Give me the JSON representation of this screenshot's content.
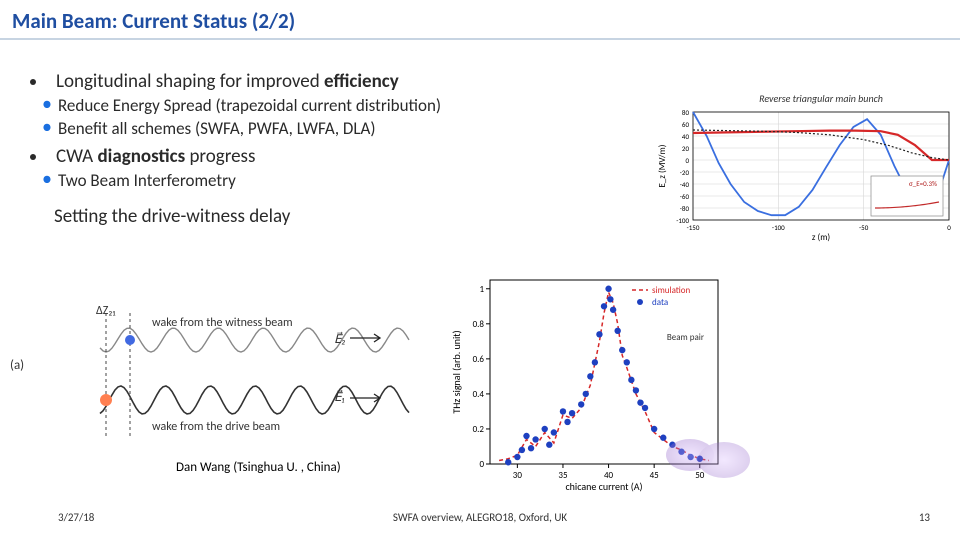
{
  "title": "Main Beam: Current Status (2/2)",
  "bullets": {
    "b1": "Longitudinal shaping for improved ",
    "b1_bold": "efficiency",
    "b1a": "Reduce Energy Spread (trapezoidal current distribution)",
    "b1b": "Benefit all schemes (SWFA, PWFA, LWFA, DLA)",
    "b2_pre": "CWA ",
    "b2_bold": "diagnostics",
    "b2_post": " progress",
    "b2a": "Two Beam Interferometry"
  },
  "sub_heading": "Setting the drive-witness delay",
  "diagram_a": {
    "label_a": "(a)",
    "delta": "ΔZ₂₁",
    "witness": "wake from the witness beam",
    "drive": "wake from the drive beam",
    "e1": "E⃗₁",
    "e2": "E⃗₂",
    "wave_color_dark": "#333333",
    "wave_color_light": "#888888",
    "witness_marker": "#4169e1",
    "drive_marker": "#ff7f50"
  },
  "thz": {
    "type": "scatter+line",
    "xlabel": "chicane current (A)",
    "ylabel": "THz signal (arb. unit)",
    "legend_sim": "simulation",
    "legend_data": "data",
    "beam_pair": "Beam pair",
    "xlim": [
      27,
      52
    ],
    "xticks": [
      30,
      35,
      40,
      45,
      50
    ],
    "ylim": [
      0,
      1.05
    ],
    "yticks": [
      0,
      0.2,
      0.4,
      0.6,
      0.8,
      1
    ],
    "sim_color": "#d62728",
    "sim_dash": "4,3",
    "data_color": "#1e40c0",
    "marker_size": 3.2,
    "grid_color": "#000000",
    "background": "#ffffff",
    "sim_points": [
      [
        28,
        0.02
      ],
      [
        29,
        0.03
      ],
      [
        30,
        0.05
      ],
      [
        31,
        0.14
      ],
      [
        32,
        0.1
      ],
      [
        33,
        0.18
      ],
      [
        34,
        0.12
      ],
      [
        35,
        0.28
      ],
      [
        36,
        0.26
      ],
      [
        37,
        0.32
      ],
      [
        38,
        0.45
      ],
      [
        39,
        0.7
      ],
      [
        39.5,
        0.86
      ],
      [
        40,
        0.98
      ],
      [
        40.5,
        0.92
      ],
      [
        41,
        0.8
      ],
      [
        41.5,
        0.62
      ],
      [
        42,
        0.55
      ],
      [
        43,
        0.4
      ],
      [
        44,
        0.3
      ],
      [
        45,
        0.18
      ],
      [
        46,
        0.14
      ],
      [
        47,
        0.1
      ],
      [
        48,
        0.08
      ],
      [
        49,
        0.05
      ],
      [
        50,
        0.03
      ],
      [
        51,
        0.02
      ]
    ],
    "data_points": [
      [
        29,
        0.01
      ],
      [
        30,
        0.04
      ],
      [
        30.5,
        0.08
      ],
      [
        31,
        0.16
      ],
      [
        31.5,
        0.09
      ],
      [
        32,
        0.14
      ],
      [
        33,
        0.2
      ],
      [
        33.5,
        0.11
      ],
      [
        34,
        0.18
      ],
      [
        35,
        0.3
      ],
      [
        35.5,
        0.24
      ],
      [
        36,
        0.29
      ],
      [
        37,
        0.34
      ],
      [
        37.5,
        0.4
      ],
      [
        38,
        0.5
      ],
      [
        38.5,
        0.58
      ],
      [
        39,
        0.74
      ],
      [
        39.5,
        0.9
      ],
      [
        40,
        1.0
      ],
      [
        40.2,
        0.94
      ],
      [
        40.5,
        0.88
      ],
      [
        41,
        0.76
      ],
      [
        41.5,
        0.65
      ],
      [
        42,
        0.58
      ],
      [
        42.5,
        0.48
      ],
      [
        43,
        0.42
      ],
      [
        43.5,
        0.35
      ],
      [
        44,
        0.32
      ],
      [
        45,
        0.2
      ],
      [
        46,
        0.15
      ],
      [
        47,
        0.11
      ],
      [
        48,
        0.07
      ],
      [
        49,
        0.04
      ],
      [
        50,
        0.03
      ]
    ]
  },
  "ez": {
    "type": "line",
    "title": "Reverse triangular main bunch",
    "title_fontstyle": "italic",
    "xlabel": "z (m)",
    "ylabel": "E_z (MV/m)",
    "xlim": [
      -150,
      0
    ],
    "xticks": [
      -150,
      -100,
      -50,
      0
    ],
    "ylim": [
      -100,
      80
    ],
    "yticks": [
      -100,
      -80,
      -60,
      -40,
      -20,
      0,
      20,
      40,
      60,
      80
    ],
    "grid_color": "#d6d6d6",
    "axis_color": "#000000",
    "title_color": "#333333",
    "title_fontsize": 10,
    "label_fontsize": 9,
    "tick_fontsize": 7,
    "series": {
      "blue": {
        "color": "#3a6fe0",
        "width": 1.8,
        "dash": "",
        "pts": [
          [
            -150,
            80
          ],
          [
            -142,
            40
          ],
          [
            -135,
            -5
          ],
          [
            -128,
            -40
          ],
          [
            -120,
            -70
          ],
          [
            -112,
            -85
          ],
          [
            -104,
            -92
          ],
          [
            -96,
            -92
          ],
          [
            -88,
            -78
          ],
          [
            -80,
            -50
          ],
          [
            -72,
            -12
          ],
          [
            -64,
            25
          ],
          [
            -56,
            55
          ],
          [
            -48,
            68
          ],
          [
            -40,
            42
          ],
          [
            -32,
            -10
          ],
          [
            -24,
            -55
          ],
          [
            -16,
            -82
          ],
          [
            -8,
            -70
          ],
          [
            0,
            0
          ]
        ]
      },
      "red": {
        "color": "#d62728",
        "width": 2.2,
        "dash": "",
        "pts": [
          [
            -150,
            45
          ],
          [
            -130,
            46
          ],
          [
            -110,
            47
          ],
          [
            -90,
            48
          ],
          [
            -70,
            49
          ],
          [
            -55,
            49
          ],
          [
            -40,
            48
          ],
          [
            -30,
            42
          ],
          [
            -20,
            25
          ],
          [
            -10,
            0
          ],
          [
            0,
            0
          ]
        ]
      },
      "dotted": {
        "color": "#222222",
        "width": 1.2,
        "dash": "2,2",
        "pts": [
          [
            -150,
            50
          ],
          [
            -130,
            49
          ],
          [
            -110,
            48
          ],
          [
            -90,
            46
          ],
          [
            -70,
            42
          ],
          [
            -50,
            34
          ],
          [
            -35,
            24
          ],
          [
            -22,
            12
          ],
          [
            -10,
            4
          ],
          [
            0,
            0
          ]
        ]
      }
    },
    "inset": {
      "sigma_label": "σ_E=0.3%",
      "x": [
        20,
        60,
        100,
        140
      ],
      "y": [
        0,
        0,
        0,
        0.02
      ],
      "frame_color": "#888888",
      "curve_color": "#c22a2a"
    }
  },
  "credit": "Dan Wang  (Tsinghua U. , China)",
  "footer": {
    "date": "3/27/18",
    "mid": "SWFA overview, ALEGRO18, Oxford, UK",
    "page": "13"
  },
  "colors": {
    "title": "#1f4ea1",
    "bullet2_marker": "#1a6fe0"
  }
}
